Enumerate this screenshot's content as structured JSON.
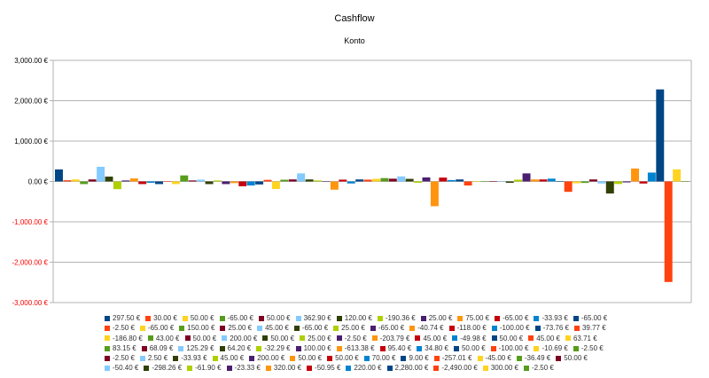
{
  "chart_data": {
    "type": "bar",
    "title": "Cashflow",
    "subtitle": "Konto",
    "xlabel": "",
    "ylabel": "",
    "ylim": [
      -3000,
      3000
    ],
    "y_ticks": [
      3000,
      2000,
      1000,
      0,
      -1000,
      -2000,
      -3000
    ],
    "y_tick_labels": [
      "3,000.00 €",
      "2,000.00 €",
      "1,000.00 €",
      "0.00 €",
      "-1,000.00 €",
      "-2,000.00 €",
      "-3,000.00 €"
    ],
    "grid": true,
    "legend_position": "bottom",
    "palette": [
      "#004586",
      "#ff420e",
      "#ffd320",
      "#579d1c",
      "#7e0021",
      "#83caff",
      "#314004",
      "#aecf00",
      "#4b1f6f",
      "#ff950e",
      "#c5000b",
      "#0084d1"
    ],
    "values": [
      297.5,
      30,
      50,
      -65,
      50,
      362.9,
      120,
      -190.36,
      25,
      75,
      -65,
      -33.93,
      -65,
      -2.5,
      -65,
      150,
      25,
      45,
      -65,
      25,
      -65,
      -40.74,
      -118,
      -100,
      -73.76,
      39.77,
      -186.8,
      43,
      50,
      200,
      50,
      25,
      -2.5,
      -203.79,
      45,
      -49.98,
      50,
      45,
      63.71,
      83.15,
      68.09,
      125.29,
      64.2,
      -32.29,
      100,
      -613.38,
      95.4,
      34.8,
      50,
      -100,
      -10.69,
      -2.5,
      -2.5,
      2.5,
      -33.93,
      45,
      200,
      50,
      50,
      70,
      9,
      -257.01,
      -45,
      -36.49,
      50,
      -50.4,
      -298.26,
      -61.9,
      -23.33,
      320,
      -50.95,
      220,
      2280,
      -2490,
      300,
      -2.5
    ],
    "series_names": [
      "297.50 €",
      "30.00 €",
      "50.00 €",
      "-65.00 €",
      "50.00 €",
      "362.90 €",
      "120.00 €",
      "-190.36 €",
      "25.00 €",
      "75.00 €",
      "-65.00 €",
      "-33.93 €",
      "-65.00 €",
      "-2.50 €",
      "-65.00 €",
      "150.00 €",
      "25.00 €",
      "45.00 €",
      "-65.00 €",
      "25.00 €",
      "-65.00 €",
      "-40.74 €",
      "-118.00 €",
      "-100.00 €",
      "-73.76 €",
      "39.77 €",
      "-186.80 €",
      "43.00 €",
      "50.00 €",
      "200.00 €",
      "50.00 €",
      "25.00 €",
      "-2.50 €",
      "-203.79 €",
      "45.00 €",
      "-49.98 €",
      "50.00 €",
      "45.00 €",
      "63.71 €",
      "83.15 €",
      "68.09 €",
      "125.29 €",
      "64.20 €",
      "-32.29 €",
      "100.00 €",
      "-613.38 €",
      "95.40 €",
      "34.80 €",
      "50.00 €",
      "-100.00 €",
      "-10.69 €",
      "-2.50 €",
      "-2.50 €",
      "2.50 €",
      "-33.93 €",
      "45.00 €",
      "200.00 €",
      "50.00 €",
      "50.00 €",
      "70.00 €",
      "9.00 €",
      "-257.01 €",
      "-45.00 €",
      "-36.49 €",
      "50.00 €",
      "-50.40 €",
      "-298.26 €",
      "-61.90 €",
      "-23.33 €",
      "320.00 €",
      "-50.95 €",
      "220.00 €",
      "2,280.00 €",
      "-2,490.00 €",
      "300.00 €",
      "-2.50 €"
    ]
  }
}
